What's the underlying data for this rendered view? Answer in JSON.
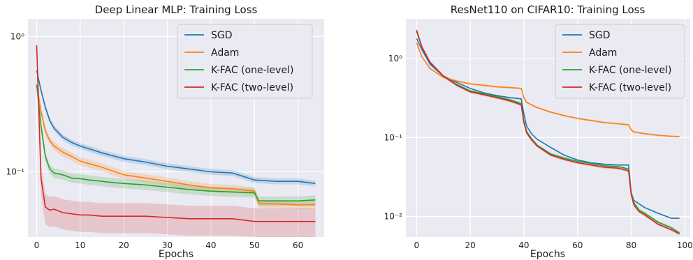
{
  "colors": {
    "SGD": "#1f77b4",
    "Adam": "#ff7f0e",
    "K-FAC (one-level)": "#2ca02c",
    "K-FAC (two-level)": "#d62728",
    "plot_bg": "#eaeaf2",
    "grid": "#ffffff"
  },
  "chart_data": [
    {
      "type": "line",
      "title": "Deep Linear MLP: Training Loss",
      "xlabel": "Epochs",
      "ylabel": "",
      "yscale": "log",
      "xlim": [
        -2,
        66
      ],
      "ylim": [
        0.033,
        1.35
      ],
      "xticks": [
        0,
        10,
        20,
        30,
        40,
        50,
        60
      ],
      "xtick_labels": [
        "0",
        "10",
        "20",
        "30",
        "40",
        "50",
        "60"
      ],
      "yticks": [
        1,
        0.1
      ],
      "ytick_labels": [
        "10⁰",
        "10⁻¹"
      ],
      "grid": true,
      "legend": "upper right",
      "series": [
        {
          "name": "SGD",
          "x": [
            0,
            1,
            2,
            3,
            4,
            6,
            8,
            10,
            12,
            15,
            18,
            20,
            25,
            30,
            35,
            40,
            45,
            50,
            55,
            60,
            64
          ],
          "y": [
            0.56,
            0.4,
            0.3,
            0.24,
            0.21,
            0.18,
            0.165,
            0.155,
            0.148,
            0.138,
            0.13,
            0.125,
            0.118,
            0.11,
            0.105,
            0.1,
            0.098,
            0.087,
            0.085,
            0.085,
            0.082
          ],
          "band": 0.05
        },
        {
          "name": "Adam",
          "x": [
            0,
            1,
            2,
            3,
            4,
            6,
            8,
            10,
            12,
            15,
            18,
            20,
            25,
            30,
            35,
            40,
            45,
            50,
            51,
            55,
            60,
            64
          ],
          "y": [
            0.44,
            0.28,
            0.2,
            0.17,
            0.155,
            0.14,
            0.13,
            0.12,
            0.115,
            0.108,
            0.1,
            0.095,
            0.09,
            0.085,
            0.08,
            0.076,
            0.075,
            0.072,
            0.058,
            0.058,
            0.057,
            0.057
          ],
          "band": 0.07
        },
        {
          "name": "K-FAC (one-level)",
          "x": [
            0,
            1,
            2,
            3,
            4,
            6,
            8,
            10,
            12,
            15,
            18,
            20,
            25,
            30,
            35,
            40,
            45,
            50,
            51,
            55,
            60,
            64
          ],
          "y": [
            0.44,
            0.22,
            0.13,
            0.105,
            0.098,
            0.095,
            0.09,
            0.089,
            0.087,
            0.085,
            0.083,
            0.082,
            0.08,
            0.077,
            0.074,
            0.072,
            0.071,
            0.07,
            0.061,
            0.061,
            0.061,
            0.062
          ],
          "band": 0.08
        },
        {
          "name": "K-FAC (two-level)",
          "x": [
            0,
            1,
            2,
            3,
            4,
            6,
            8,
            10,
            12,
            15,
            18,
            20,
            25,
            30,
            35,
            40,
            45,
            50,
            55,
            60,
            64
          ],
          "y": [
            0.86,
            0.09,
            0.055,
            0.052,
            0.053,
            0.05,
            0.049,
            0.048,
            0.048,
            0.047,
            0.047,
            0.047,
            0.047,
            0.046,
            0.045,
            0.045,
            0.045,
            0.043,
            0.043,
            0.043,
            0.043
          ],
          "band": 0.25
        }
      ]
    },
    {
      "type": "line",
      "title": "ResNet110 on CIFAR10: Training Loss",
      "xlabel": "Epochs",
      "ylabel": "",
      "yscale": "log",
      "xlim": [
        -4,
        102
      ],
      "ylim": [
        0.0055,
        3.2
      ],
      "xticks": [
        0,
        20,
        40,
        60,
        80,
        100
      ],
      "xtick_labels": [
        "0",
        "20",
        "40",
        "60",
        "80",
        "100"
      ],
      "yticks": [
        1,
        0.1,
        0.01
      ],
      "ytick_labels": [
        "10⁰",
        "10⁻¹",
        "10⁻²"
      ],
      "grid": true,
      "legend": "upper right",
      "series": [
        {
          "name": "SGD",
          "x": [
            0,
            2,
            5,
            10,
            15,
            20,
            25,
            30,
            35,
            39,
            40,
            41,
            43,
            45,
            50,
            55,
            60,
            65,
            70,
            75,
            79,
            80,
            81,
            85,
            90,
            95,
            98
          ],
          "y": [
            1.8,
            1.3,
            0.85,
            0.6,
            0.5,
            0.42,
            0.37,
            0.34,
            0.32,
            0.31,
            0.2,
            0.14,
            0.11,
            0.095,
            0.075,
            0.06,
            0.052,
            0.048,
            0.046,
            0.045,
            0.045,
            0.02,
            0.016,
            0.013,
            0.011,
            0.0095,
            0.0095
          ],
          "band": 0.02
        },
        {
          "name": "Adam",
          "x": [
            0,
            2,
            5,
            10,
            15,
            20,
            25,
            30,
            35,
            39,
            40,
            41,
            45,
            50,
            55,
            60,
            65,
            70,
            75,
            79,
            80,
            81,
            85,
            90,
            95,
            98
          ],
          "y": [
            1.6,
            1.05,
            0.75,
            0.58,
            0.52,
            0.48,
            0.46,
            0.44,
            0.43,
            0.42,
            0.32,
            0.28,
            0.24,
            0.21,
            0.19,
            0.175,
            0.165,
            0.155,
            0.15,
            0.145,
            0.125,
            0.118,
            0.112,
            0.107,
            0.104,
            0.103
          ],
          "band": 0.03
        },
        {
          "name": "K-FAC (one-level)",
          "x": [
            0,
            2,
            5,
            10,
            15,
            20,
            25,
            30,
            35,
            39,
            40,
            41,
            43,
            45,
            50,
            55,
            60,
            65,
            70,
            75,
            79,
            80,
            81,
            83,
            85,
            90,
            95,
            98
          ],
          "y": [
            2.2,
            1.4,
            0.9,
            0.6,
            0.47,
            0.39,
            0.36,
            0.33,
            0.3,
            0.27,
            0.16,
            0.12,
            0.095,
            0.08,
            0.062,
            0.055,
            0.05,
            0.047,
            0.044,
            0.043,
            0.04,
            0.02,
            0.015,
            0.012,
            0.011,
            0.0085,
            0.0072,
            0.0062
          ],
          "band": 0.04
        },
        {
          "name": "K-FAC (two-level)",
          "x": [
            0,
            2,
            5,
            10,
            15,
            20,
            25,
            30,
            35,
            39,
            40,
            41,
            43,
            45,
            50,
            55,
            60,
            65,
            70,
            75,
            79,
            80,
            81,
            83,
            85,
            90,
            95,
            98
          ],
          "y": [
            2.3,
            1.4,
            0.9,
            0.6,
            0.46,
            0.38,
            0.35,
            0.32,
            0.29,
            0.26,
            0.155,
            0.115,
            0.092,
            0.078,
            0.06,
            0.053,
            0.048,
            0.045,
            0.042,
            0.041,
            0.038,
            0.019,
            0.014,
            0.0115,
            0.0105,
            0.008,
            0.0068,
            0.006
          ],
          "band": 0.04
        }
      ]
    }
  ]
}
